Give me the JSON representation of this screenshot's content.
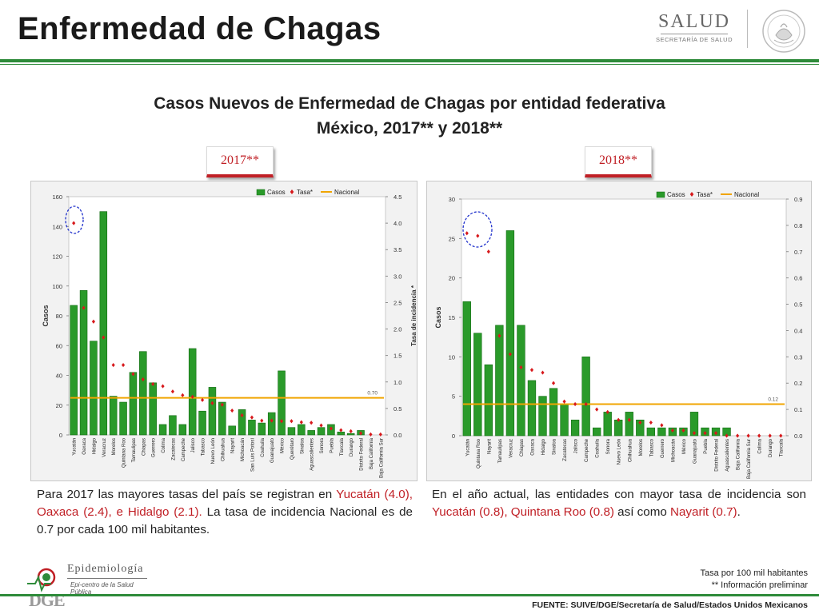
{
  "header": {
    "title": "Enfermedad de Chagas",
    "logo_text": "SALUD",
    "logo_subtext": "SECRETARÍA DE SALUD"
  },
  "subtitle": {
    "line1": "Casos Nuevos de Enfermedad de Chagas por entidad federativa",
    "line2": "México, 2017** y 2018**"
  },
  "badges": {
    "y2017": "2017**",
    "y2018": "2018**"
  },
  "colors": {
    "bar": "#2a9a2a",
    "bar_dark": "#136b13",
    "rate": "#d7191c",
    "national": "#f0a500",
    "highlight_circle": "#2233cc",
    "accent_green": "#2e8b3a",
    "accent_red": "#c01f25"
  },
  "chart_data": [
    {
      "type": "bar",
      "year": "2017**",
      "legend": [
        "Casos",
        "Tasa*",
        "Nacional"
      ],
      "legend_position": "top-right",
      "ylabel": "Casos",
      "y2label": "Tasa de incidencia *",
      "ylim": [
        0,
        160
      ],
      "yticks": [
        0,
        20,
        40,
        60,
        80,
        100,
        120,
        140,
        160
      ],
      "y2lim": [
        0,
        4.5
      ],
      "y2ticks": [
        "0.0",
        "0.5",
        "1.0",
        "1.5",
        "2.0",
        "2.5",
        "3.0",
        "3.5",
        "4.0",
        "4.5"
      ],
      "national_rate": 0.7,
      "national_label": "0.70",
      "categories": [
        "Yucatán",
        "Oaxaca",
        "Hidalgo",
        "Veracruz",
        "Morelos",
        "Quintana Roo",
        "Tamaulipas",
        "Chiapas",
        "Guerrero",
        "Colima",
        "Zacatecas",
        "Campeche",
        "Jalisco",
        "Tabasco",
        "Nuevo León",
        "Chihuahua",
        "Nayarit",
        "Michoacán",
        "San Luis Potosí",
        "Coahuila",
        "Guanajuato",
        "México",
        "Querétaro",
        "Sinaloa",
        "Aguascalientes",
        "Sonora",
        "Puebla",
        "Tlaxcala",
        "Durango",
        "Distrito Federal",
        "Baja California",
        "Baja California Sur"
      ],
      "series": [
        {
          "name": "Casos",
          "values": [
            87,
            97,
            63,
            150,
            26,
            22,
            42,
            56,
            35,
            7,
            13,
            7,
            58,
            16,
            32,
            22,
            6,
            17,
            10,
            8,
            15,
            43,
            5,
            7,
            3,
            5,
            7,
            2,
            1,
            3,
            0,
            0
          ]
        },
        {
          "name": "Tasa*",
          "values": [
            4.0,
            2.4,
            2.14,
            1.84,
            1.32,
            1.32,
            1.15,
            1.05,
            0.96,
            0.92,
            0.82,
            0.75,
            0.72,
            0.66,
            0.6,
            0.57,
            0.46,
            0.37,
            0.33,
            0.27,
            0.27,
            0.26,
            0.26,
            0.24,
            0.23,
            0.18,
            0.12,
            0.09,
            0.07,
            0.03,
            0.01,
            0.01
          ]
        }
      ],
      "highlight": "Yucatán"
    },
    {
      "type": "bar",
      "year": "2018**",
      "legend": [
        "Casos",
        "Tasa*",
        "Nacional"
      ],
      "legend_position": "top-right",
      "ylabel": "Casos",
      "y2label": "Tasa de incidencia *",
      "ylim": [
        0,
        30
      ],
      "yticks": [
        0,
        5,
        10,
        15,
        20,
        25,
        30
      ],
      "y2lim": [
        0,
        0.9
      ],
      "y2ticks": [
        "0.0",
        "0.1",
        "0.2",
        "0.3",
        "0.4",
        "0.5",
        "0.6",
        "0.7",
        "0.8",
        "0.9"
      ],
      "national_rate": 0.12,
      "national_label": "0.12",
      "categories": [
        "Yucatán",
        "Quintana Roo",
        "Nayarit",
        "Tamaulipas",
        "Veracruz",
        "Chiapas",
        "Oaxaca",
        "Hidalgo",
        "Sinaloa",
        "Zacatecas",
        "Jalisco",
        "Campeche",
        "Coahuila",
        "Sonora",
        "Nuevo León",
        "Chihuahua",
        "Morelos",
        "Tabasco",
        "Guerrero",
        "Michoacán",
        "México",
        "Guanajuato",
        "Puebla",
        "Distrito Federal",
        "Aguascalientes",
        "Baja California",
        "Baja California Sur",
        "Colima",
        "Durango",
        "Tlaxcala"
      ],
      "series": [
        {
          "name": "Casos",
          "values": [
            17,
            13,
            9,
            14,
            26,
            14,
            7,
            5,
            6,
            4,
            2,
            10,
            1,
            3,
            2,
            3,
            2,
            1,
            1,
            1,
            1,
            3,
            1,
            1,
            1,
            0,
            0,
            0,
            0,
            0
          ]
        },
        {
          "name": "Tasa*",
          "values": [
            0.77,
            0.76,
            0.7,
            0.38,
            0.31,
            0.26,
            0.25,
            0.24,
            0.2,
            0.13,
            0.12,
            0.12,
            0.1,
            0.09,
            0.06,
            0.06,
            0.05,
            0.05,
            0.04,
            0.02,
            0.02,
            0.01,
            0.01,
            0.01,
            0.0,
            0.0,
            0.0,
            0.0,
            0.0,
            0.0
          ]
        }
      ],
      "highlight": "Yucatán, Quintana Roo, Nayarit"
    }
  ],
  "notes": {
    "y2017": {
      "intro": "Para 2017 las mayores tasas del país se registran en ",
      "highlight": "Yucatán (4.0), Oaxaca (2.4), e Hidalgo (2.1).",
      "rest": " La tasa de incidencia Nacional es de 0.7 por cada 100 mil habitantes."
    },
    "y2018": {
      "intro": "En el año actual, las entidades con mayor tasa de incidencia son ",
      "highlight1": "Yucatán (0.8), Quintana Roo (0.8)",
      "middle": " así como ",
      "highlight2": "Nayarit (0.7)",
      "end": "."
    }
  },
  "footnotes": {
    "line1": "Tasa por 100 mil habitantes",
    "line2": "** Información preliminar",
    "source": "FUENTE: SUIVE/DGE/Secretaría de Salud/Estados Unidos Mexicanos"
  },
  "epi_logo": {
    "mark": "DGE",
    "label": "Epidemiología",
    "tagline": "Epi-centro de la Salud Pública"
  }
}
